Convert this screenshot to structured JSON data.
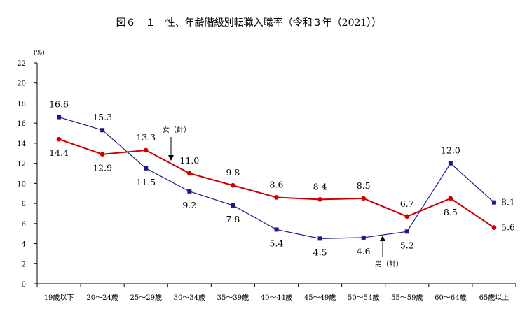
{
  "chart_data": {
    "type": "line",
    "title": "図６－１　性、年齢階級別転職入職率（令和３年（2021））",
    "ylabel": "(%)",
    "ylim": [
      0,
      22
    ],
    "yticks": [
      0,
      2,
      4,
      6,
      8,
      10,
      12,
      14,
      16,
      18,
      20,
      22
    ],
    "categories": [
      "19歳以下",
      "20～24歳",
      "25～29歳",
      "30～34歳",
      "35～39歳",
      "40～44歳",
      "45～49歳",
      "50～54歳",
      "55～59歳",
      "60～64歳",
      "65歳以上"
    ],
    "series": [
      {
        "name": "男（計）",
        "color": "#1a1a8c",
        "marker": "square",
        "values": [
          16.6,
          15.3,
          11.5,
          9.2,
          7.8,
          5.4,
          4.5,
          4.6,
          5.2,
          12.0,
          8.1
        ],
        "labels": [
          "16.6",
          "15.3",
          "11.5",
          "9.2",
          "7.8",
          "5.4",
          "4.5",
          "4.6",
          "5.2",
          "12.0",
          "8.1"
        ]
      },
      {
        "name": "女（計）",
        "color": "#cc0000",
        "marker": "circle",
        "values": [
          14.4,
          12.9,
          13.3,
          11.0,
          9.8,
          8.6,
          8.4,
          8.5,
          6.7,
          8.5,
          5.6
        ],
        "labels": [
          "14.4",
          "12.9",
          "13.3",
          "11.0",
          "9.8",
          "8.6",
          "8.4",
          "8.5",
          "6.7",
          "8.5",
          "5.6"
        ]
      }
    ],
    "annotations": [
      "女（計）",
      "男（計）"
    ],
    "grid": false
  }
}
